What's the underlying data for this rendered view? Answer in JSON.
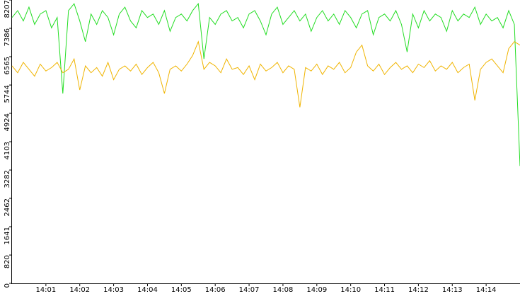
{
  "chart_data": {
    "type": "line",
    "x": [
      50400,
      50410,
      50420,
      50430,
      50440,
      50450,
      50460,
      50470,
      50480,
      50490,
      50500,
      50510,
      50520,
      50530,
      50540,
      50550,
      50560,
      50570,
      50580,
      50590,
      50600,
      50610,
      50620,
      50630,
      50640,
      50650,
      50660,
      50670,
      50680,
      50690,
      50700,
      50710,
      50720,
      50730,
      50740,
      50750,
      50760,
      50770,
      50780,
      50790,
      50800,
      50810,
      50820,
      50830,
      50840,
      50850,
      50860,
      50870,
      50880,
      50890,
      50900,
      50910,
      50920,
      50930,
      50940,
      50950,
      50960,
      50970,
      50980,
      50990,
      51000,
      51010,
      51020,
      51030,
      51040,
      51050,
      51060,
      51070,
      51080,
      51090,
      51100,
      51110,
      51120,
      51130,
      51140,
      51150,
      51160,
      51170,
      51180,
      51190,
      51200,
      51210,
      51220,
      51230,
      51240,
      51250,
      51260,
      51270,
      51280,
      51290,
      51300
    ],
    "series": [
      {
        "color": "#22dd22",
        "values": [
          7700,
          7900,
          7600,
          8000,
          7500,
          7800,
          7900,
          7400,
          7700,
          5500,
          7900,
          8100,
          7600,
          7000,
          7800,
          7500,
          7900,
          7700,
          7200,
          7800,
          8000,
          7600,
          7400,
          7900,
          7700,
          7800,
          7500,
          7900,
          7300,
          7700,
          7800,
          7600,
          7900,
          8100,
          6500,
          7700,
          7500,
          7800,
          7900,
          7600,
          7700,
          7400,
          7800,
          7900,
          7600,
          7200,
          7800,
          8000,
          7500,
          7700,
          7900,
          7600,
          7800,
          7300,
          7700,
          7900,
          7600,
          7800,
          7500,
          7900,
          7700,
          7400,
          7800,
          7900,
          7200,
          7700,
          7800,
          7600,
          7900,
          7500,
          6700,
          7800,
          7400,
          7900,
          7600,
          7800,
          7700,
          7300,
          7900,
          7600,
          7800,
          7700,
          8000,
          7500,
          7800,
          7600,
          7700,
          7400,
          7900,
          7500,
          3400
        ]
      },
      {
        "color": "#f0b400",
        "values": [
          6300,
          6100,
          6400,
          6200,
          6000,
          6350,
          6150,
          6250,
          6400,
          6100,
          6200,
          6500,
          5600,
          6300,
          6100,
          6250,
          6000,
          6400,
          5900,
          6200,
          6300,
          6150,
          6350,
          6050,
          6250,
          6400,
          6100,
          5500,
          6200,
          6300,
          6150,
          6350,
          6600,
          7000,
          6200,
          6400,
          6300,
          6100,
          6500,
          6200,
          6250,
          6050,
          6300,
          5900,
          6350,
          6150,
          6250,
          6400,
          6100,
          6300,
          6200,
          5100,
          6250,
          6150,
          6350,
          6050,
          6300,
          6200,
          6400,
          6100,
          6250,
          6700,
          6900,
          6300,
          6150,
          6350,
          6050,
          6250,
          6400,
          6200,
          6300,
          6100,
          6350,
          6250,
          6450,
          6150,
          6300,
          6200,
          6400,
          6100,
          6250,
          6350,
          5300,
          6200,
          6400,
          6500,
          6300,
          6100,
          6800,
          7000,
          6900
        ]
      }
    ],
    "xlim": [
      50400,
      51300
    ],
    "xticks": [
      {
        "value": 50460,
        "label": "14:01"
      },
      {
        "value": 50520,
        "label": "14:02"
      },
      {
        "value": 50580,
        "label": "14:03"
      },
      {
        "value": 50640,
        "label": "14:04"
      },
      {
        "value": 50700,
        "label": "14:05"
      },
      {
        "value": 50760,
        "label": "14:06"
      },
      {
        "value": 50820,
        "label": "14:07"
      },
      {
        "value": 50880,
        "label": "14:08"
      },
      {
        "value": 50940,
        "label": "14:09"
      },
      {
        "value": 51000,
        "label": "14:10"
      },
      {
        "value": 51060,
        "label": "14:11"
      },
      {
        "value": 51120,
        "label": "14:12"
      },
      {
        "value": 51180,
        "label": "14:13"
      },
      {
        "value": 51240,
        "label": "14:14"
      }
    ],
    "ylim": [
      0,
      8207
    ],
    "yticks": [
      0,
      820,
      1641,
      2462,
      3282,
      4103,
      4924,
      5744,
      6565,
      7386,
      8207
    ]
  }
}
